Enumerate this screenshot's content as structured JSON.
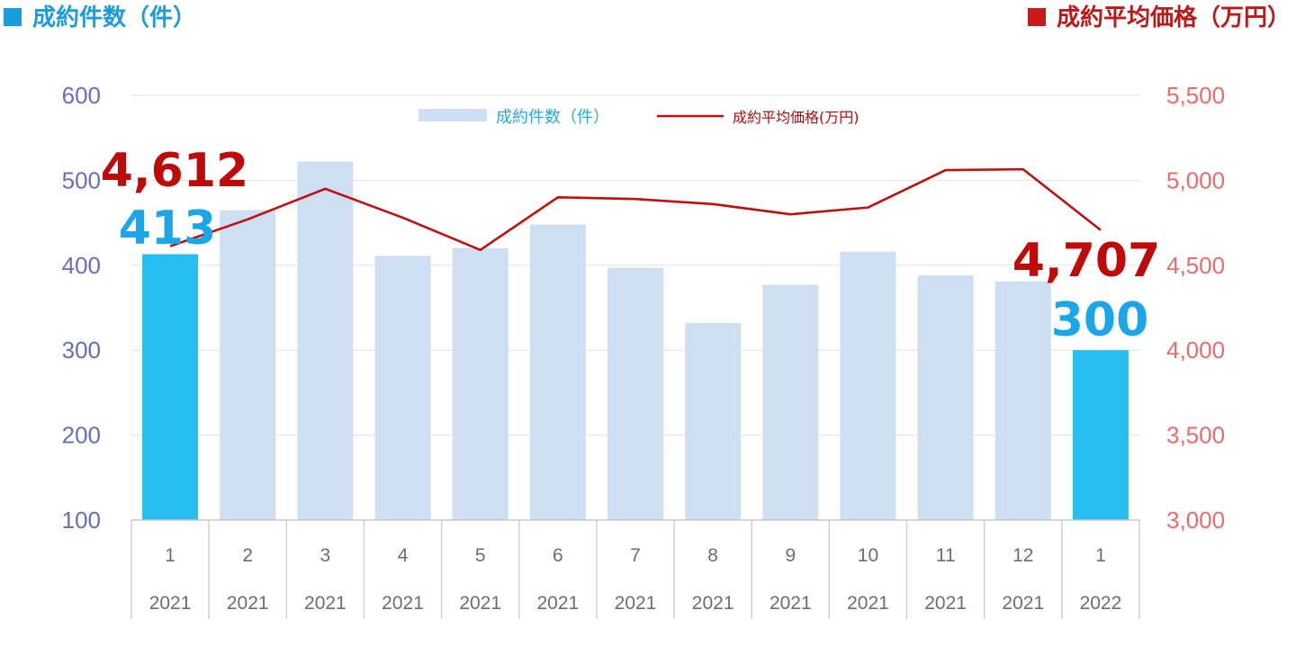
{
  "header": {
    "left_title": "成約件数（件）",
    "right_title": "成約平均価格（万円）",
    "left_color": "#1a9ddf",
    "right_color": "#c81a1a"
  },
  "chart_data": {
    "type": "bar",
    "categories": [
      {
        "month": "1",
        "year": "2021"
      },
      {
        "month": "2",
        "year": "2021"
      },
      {
        "month": "3",
        "year": "2021"
      },
      {
        "month": "4",
        "year": "2021"
      },
      {
        "month": "5",
        "year": "2021"
      },
      {
        "month": "6",
        "year": "2021"
      },
      {
        "month": "7",
        "year": "2021"
      },
      {
        "month": "8",
        "year": "2021"
      },
      {
        "month": "9",
        "year": "2021"
      },
      {
        "month": "10",
        "year": "2021"
      },
      {
        "month": "11",
        "year": "2021"
      },
      {
        "month": "12",
        "year": "2021"
      },
      {
        "month": "1",
        "year": "2022"
      }
    ],
    "series": [
      {
        "name": "成約件数（件）",
        "type": "bar",
        "axis": "left",
        "values": [
          413,
          465,
          522,
          411,
          420,
          448,
          397,
          332,
          377,
          416,
          388,
          381,
          300
        ],
        "highlight_indices": [
          0,
          12
        ],
        "color": "#cfdff3",
        "highlight_color": "#27bdef"
      },
      {
        "name": "成約平均価格(万円)",
        "type": "line",
        "axis": "right",
        "values": [
          4612,
          4770,
          4950,
          4780,
          4590,
          4900,
          4890,
          4860,
          4800,
          4840,
          5060,
          5065,
          4707
        ],
        "color": "#bf0f0f"
      }
    ],
    "left_axis": {
      "range": [
        100,
        600
      ],
      "ticks": [
        "100",
        "200",
        "300",
        "400",
        "500",
        "600"
      ],
      "color": "#6b6bc3"
    },
    "right_axis": {
      "range": [
        3000,
        5500
      ],
      "ticks": [
        "3,000",
        "3,500",
        "4,000",
        "4,500",
        "5,000",
        "5,500"
      ],
      "color": "#f06a6a"
    },
    "annotations": [
      {
        "series": "line",
        "index": 0,
        "text": "4,612",
        "color": "#c00a0a"
      },
      {
        "series": "bar",
        "index": 0,
        "text": "413",
        "color": "#1aa6e8"
      },
      {
        "series": "line",
        "index": 12,
        "text": "4,707",
        "color": "#c00a0a"
      },
      {
        "series": "bar",
        "index": 12,
        "text": "300",
        "color": "#1aa6e8"
      }
    ],
    "legend": {
      "placement": "top-center"
    },
    "grid": true
  }
}
